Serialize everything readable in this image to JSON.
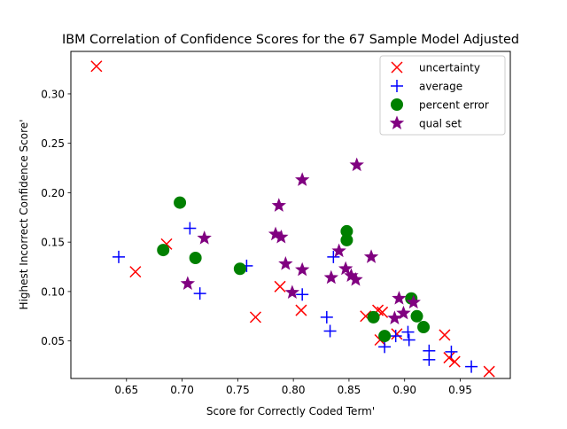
{
  "chart_data": {
    "type": "scatter",
    "title": "IBM Correlation of Confidence Scores for the 67 Sample Model Adjusted",
    "xlabel": "Score for Correctly Coded Term'",
    "ylabel": "Highest Incorrect Confidence Score'",
    "xlim": [
      0.6,
      0.995
    ],
    "ylim": [
      0.012,
      0.343
    ],
    "x_ticks": [
      0.65,
      0.7,
      0.75,
      0.8,
      0.85,
      0.9,
      0.95
    ],
    "x_tick_labels": [
      "0.65",
      "0.70",
      "0.75",
      "0.80",
      "0.85",
      "0.90",
      "0.95"
    ],
    "y_ticks": [
      0.05,
      0.1,
      0.15,
      0.2,
      0.25,
      0.3
    ],
    "y_tick_labels": [
      "0.05",
      "0.10",
      "0.15",
      "0.20",
      "0.25",
      "0.30"
    ],
    "grid": false,
    "legend_position": "top-right",
    "series": [
      {
        "name": "uncertainty",
        "marker": "x",
        "color": "#ff0000",
        "points": [
          [
            0.623,
            0.328
          ],
          [
            0.658,
            0.12
          ],
          [
            0.686,
            0.148
          ],
          [
            0.766,
            0.074
          ],
          [
            0.788,
            0.105
          ],
          [
            0.807,
            0.081
          ],
          [
            0.865,
            0.075
          ],
          [
            0.876,
            0.081
          ],
          [
            0.88,
            0.079
          ],
          [
            0.878,
            0.051
          ],
          [
            0.893,
            0.057
          ],
          [
            0.936,
            0.056
          ],
          [
            0.94,
            0.033
          ],
          [
            0.945,
            0.029
          ],
          [
            0.976,
            0.019
          ]
        ]
      },
      {
        "name": "average",
        "marker": "+",
        "color": "#0000ff",
        "points": [
          [
            0.643,
            0.135
          ],
          [
            0.707,
            0.164
          ],
          [
            0.716,
            0.098
          ],
          [
            0.758,
            0.126
          ],
          [
            0.808,
            0.097
          ],
          [
            0.83,
            0.074
          ],
          [
            0.833,
            0.06
          ],
          [
            0.836,
            0.135
          ],
          [
            0.882,
            0.044
          ],
          [
            0.892,
            0.055
          ],
          [
            0.903,
            0.059
          ],
          [
            0.904,
            0.051
          ],
          [
            0.922,
            0.04
          ],
          [
            0.922,
            0.031
          ],
          [
            0.942,
            0.039
          ],
          [
            0.96,
            0.024
          ]
        ]
      },
      {
        "name": "percent error",
        "marker": "o",
        "color": "#008000",
        "points": [
          [
            0.683,
            0.142
          ],
          [
            0.698,
            0.19
          ],
          [
            0.712,
            0.134
          ],
          [
            0.752,
            0.123
          ],
          [
            0.848,
            0.161
          ],
          [
            0.848,
            0.152
          ],
          [
            0.872,
            0.074
          ],
          [
            0.882,
            0.055
          ],
          [
            0.906,
            0.093
          ],
          [
            0.911,
            0.075
          ],
          [
            0.917,
            0.064
          ]
        ]
      },
      {
        "name": "qual set",
        "marker": "*",
        "color": "#800080",
        "points": [
          [
            0.705,
            0.108
          ],
          [
            0.72,
            0.154
          ],
          [
            0.784,
            0.158
          ],
          [
            0.787,
            0.187
          ],
          [
            0.789,
            0.155
          ],
          [
            0.793,
            0.128
          ],
          [
            0.799,
            0.099
          ],
          [
            0.808,
            0.122
          ],
          [
            0.808,
            0.213
          ],
          [
            0.834,
            0.114
          ],
          [
            0.841,
            0.141
          ],
          [
            0.847,
            0.123
          ],
          [
            0.852,
            0.116
          ],
          [
            0.856,
            0.112
          ],
          [
            0.857,
            0.228
          ],
          [
            0.87,
            0.135
          ],
          [
            0.891,
            0.073
          ],
          [
            0.895,
            0.093
          ],
          [
            0.899,
            0.078
          ],
          [
            0.908,
            0.089
          ]
        ]
      }
    ]
  }
}
